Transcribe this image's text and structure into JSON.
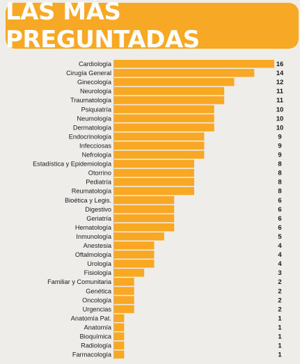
{
  "header": {
    "title": "LAS MÁS PREGUNTADAS"
  },
  "colors": {
    "banner": "#f7a825",
    "bar": "#f9a824",
    "background": "#efedea"
  },
  "chart_data": {
    "type": "bar",
    "orientation": "horizontal",
    "title": "LAS MÁS PREGUNTADAS",
    "categories": [
      "Cardiología",
      "Cirugía General",
      "Ginecología",
      "Neurología",
      "Traumatología",
      "Psiquiatría",
      "Neumología",
      "Dermatología",
      "Endocrinología",
      "Infecciosas",
      "Nefrología",
      "Estadística y Epidemiología",
      "Otorrino",
      "Pediatría",
      "Reumatología",
      "Bioética y Legis.",
      "Digestivo",
      "Geriatría",
      "Hematología",
      "Inmunología",
      "Anestesia",
      "Oftalmología",
      "Urología",
      "Fisiología",
      "Familiar y Comunitaria",
      "Genética",
      "Oncología",
      "Urgencias",
      "Anatomía Pat.",
      "Anatomía",
      "Bioquímica",
      "Radiología",
      "Farmacología"
    ],
    "values": [
      16,
      14,
      12,
      11,
      11,
      10,
      10,
      10,
      9,
      9,
      9,
      8,
      8,
      8,
      8,
      6,
      6,
      6,
      6,
      5,
      4,
      4,
      4,
      3,
      2,
      2,
      2,
      2,
      1,
      1,
      1,
      1,
      1
    ],
    "xlim": [
      0,
      16
    ],
    "grid": false,
    "legend": "none"
  }
}
